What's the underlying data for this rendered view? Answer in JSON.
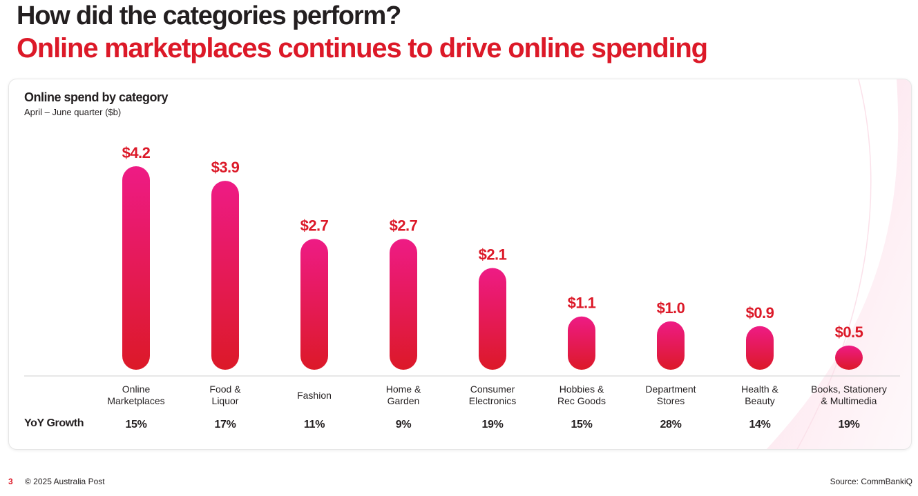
{
  "header": {
    "title": "How did the categories perform?",
    "subtitle": "Online marketplaces continues to drive online spending"
  },
  "chart_data": {
    "type": "bar",
    "title": "Online spend by category",
    "subtitle": "April – June quarter ($b)",
    "categories": [
      [
        "Online",
        "Marketplaces"
      ],
      [
        "Food &",
        "Liquor"
      ],
      [
        "Fashion"
      ],
      [
        "Home &",
        "Garden"
      ],
      [
        "Consumer",
        "Electronics"
      ],
      [
        "Hobbies &",
        "Rec Goods"
      ],
      [
        "Department",
        "Stores"
      ],
      [
        "Health &",
        "Beauty"
      ],
      [
        "Books, Stationery",
        "& Multimedia"
      ]
    ],
    "values": [
      4.2,
      3.9,
      2.7,
      2.7,
      2.1,
      1.1,
      1.0,
      0.9,
      0.5
    ],
    "value_labels": [
      "$4.2",
      "$3.9",
      "$2.7",
      "$2.7",
      "$2.1",
      "$1.1",
      "$1.0",
      "$0.9",
      "$0.5"
    ],
    "ylim": [
      0,
      4.2
    ],
    "yoy_label": "YoY Growth",
    "yoy_growth": [
      "15%",
      "17%",
      "11%",
      "9%",
      "19%",
      "15%",
      "28%",
      "14%",
      "19%"
    ],
    "colors": {
      "bar_top": "#ee1b85",
      "bar_bottom": "#dc1928",
      "value_label": "#dc1928"
    }
  },
  "footer": {
    "page_number": "3",
    "copyright": "© 2025 Australia Post",
    "source": "Source: CommBankiQ"
  }
}
